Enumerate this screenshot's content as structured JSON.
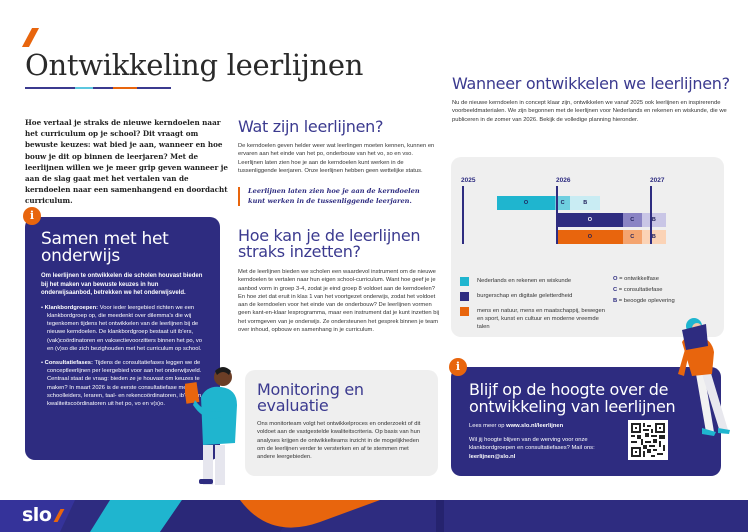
{
  "header": {
    "title": "Ontwikkeling leerlijnen"
  },
  "intro": "Hoe vertaal je straks de nieuwe kerndoelen naar het curriculum op je school? Dit vraagt om bewuste keuzes: wat bied je aan, wanneer en hoe bouw je dit op binnen de leerjaren? Met de leerlijnen willen we je meer grip geven wanneer je aan de slag gaat met het vertalen van de kerndoelen naar een samenhangend en doordacht curriculum.",
  "samen": {
    "icon": "i",
    "title": "Samen met het onderwijs",
    "lead": "Om leerlijnen te ontwikkelen die scholen houvast bieden bij het maken van bewuste keuzes in hun onderwijsaanbod, betrekken we het onderwijsveld.",
    "items": [
      {
        "label": "Klankbordgroepen:",
        "text": " Voor ieder leergebied richten we een klankbordgroep op, die meedenkt over dilemma's die wij tegenkomen tijdens het ontwikkelen van de leerlijnen bij de nieuwe kerndoelen. De klankbordgroep bestaat uit ib'ers, (vak)coördinatoren en vaksectievoorzitters binnen het po, vo en (v)so die zich bezighouden met het curriculum op school."
      },
      {
        "label": "Consultatiefases:",
        "text": " Tijdens de consultatiefases leggen we de conceptleerlijnen per leergebied voor aan het onderwijsveld. Centraal staat de vraag: bieden ze je houvast om keuzes te maken? In maart 2026 is de eerste consultatiefase met schoolleiders, leraren, taal- en rekencoördinatoren, ib'ers en kwaliteitscoördinatoren uit het po, vo en v(s)o."
      }
    ]
  },
  "wat": {
    "title": "Wat zijn leerlijnen?",
    "body": "De kerndoelen geven helder weer wat leerlingen moeten kennen, kunnen en ervaren aan het einde van het po, onderbouw van het vo, so en vso. Leerlijnen laten zien hoe je aan de kerndoelen kunt werken in de tussenliggende leerjaren. Onze leerlijnen hebben geen wettelijke status.",
    "quote": "Leerlijnen laten zien hoe je aan de kerndoelen kunt werken in de tussenliggende leerjaren."
  },
  "hoe": {
    "title": "Hoe kan je de leerlijnen straks inzetten?",
    "body": "Met de leerlijnen bieden we scholen een waardevol instrument om de nieuwe kerndoelen te vertalen naar hun eigen school-curriculum. Want hoe geef je je aanbod vorm in groep 3-4, zodat je eind groep 8 voldoet aan de kerndoelen? En hoe ziet dat eruit in klas 1 van het voortgezet onderwijs, zodat het voldoet aan de kerndoelen voor het einde van de onderbouw? De leerlijnen vormen geen kant-en-klaar lesprogramma, maar een instrument dat je kunt inzetten bij het vormgeven van je onderwijs. Ze ondersteunen het gesprek binnen je team over inhoud, opbouw en samenhang in je curriculum."
  },
  "monitor": {
    "title": "Monitoring en evaluatie",
    "body": "Ons monitorteam volgt het ontwikkelproces en onderzoekt of dit voldoet aan de vastgestelde kwaliteitscriteria. Op basis van hun analyses krijgen de ontwikkelteams inzicht in de mogelijkheden om de leerlijnen verder te versterken en af te stemmen met andere leergebieden."
  },
  "wanneer": {
    "title": "Wanneer ontwikkelen we leerlijnen?",
    "body": "Nu de nieuwe kerndoelen in concept klaar zijn, ontwikkelen we vanaf 2025 ook leerlijnen en inspirerende voorbeeldmaterialen. We zijn begonnen met de leerlijnen voor Nederlands en rekenen en wiskunde, die we publiceren in de zomer van 2026. Bekijk de volledige planning hieronder."
  },
  "timeline": {
    "years": [
      "2025",
      "2026",
      "2027"
    ],
    "rows": [
      {
        "color": "#1fb5cf",
        "phases": [
          {
            "code": "O",
            "start": 0.18,
            "end": 0.49,
            "bg": "#1fb5cf",
            "fg": "#1e1e5a"
          },
          {
            "code": "C",
            "start": 0.49,
            "end": 0.57,
            "bg": "#6fcfe0",
            "fg": "#1e1e5a"
          },
          {
            "code": "B",
            "start": 0.57,
            "end": 0.73,
            "bg": "#c9ecf3",
            "fg": "#1e1e5a"
          }
        ]
      },
      {
        "color": "#2e2c80",
        "phases": [
          {
            "code": "O",
            "start": 0.5,
            "end": 0.85,
            "bg": "#2e2c80",
            "fg": "#ffffff"
          },
          {
            "code": "C",
            "start": 0.85,
            "end": 0.95,
            "bg": "#8a84c4",
            "fg": "#1e1e5a"
          },
          {
            "code": "B",
            "start": 0.95,
            "end": 1.08,
            "bg": "#c9c6e6",
            "fg": "#1e1e5a"
          }
        ]
      },
      {
        "color": "#e8650d",
        "phases": [
          {
            "code": "O",
            "start": 0.5,
            "end": 0.85,
            "bg": "#e8650d",
            "fg": "#1e1e5a"
          },
          {
            "code": "C",
            "start": 0.85,
            "end": 0.95,
            "bg": "#f4a46f",
            "fg": "#1e1e5a"
          },
          {
            "code": "B",
            "start": 0.95,
            "end": 1.08,
            "bg": "#fbd3b6",
            "fg": "#1e1e5a"
          }
        ]
      }
    ],
    "legend": [
      {
        "color": "#1fb5cf",
        "label": "Nederlands en rekenen en wiskunde"
      },
      {
        "color": "#2e2c80",
        "label": "burgerschap en digitale geletterdheid"
      },
      {
        "color": "#e8650d",
        "label": "mens en natuur, mens en maatschappij, bewegen en sport, kunst en cultuur en moderne vreemde talen"
      }
    ],
    "keys": [
      {
        "code": "O",
        "label": " = ontwikkelfase"
      },
      {
        "code": "C",
        "label": " = consultatiefase"
      },
      {
        "code": "B",
        "label": " = beoogde oplevering"
      }
    ]
  },
  "blijf": {
    "icon": "i",
    "title": "Blijf op de hoogte over de ontwikkeling van leerlijnen",
    "lees_prefix": "Lees meer op ",
    "lees_link": "www.slo.nl/leerlijnen",
    "mail_text": "Wil jij hoogte blijven van de werving voor onze klankbordgroepen en consultatiefases? Mail ons: ",
    "mail_link": "leerlijnen@slo.nl"
  },
  "footer": {
    "logo": "slo"
  },
  "colors": {
    "brand_blue": "#2e2c80",
    "accent_orange": "#e8650d",
    "accent_cyan": "#1fb5cf"
  }
}
